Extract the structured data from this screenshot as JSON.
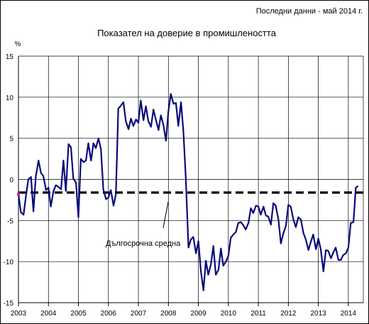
{
  "header": {
    "last_data": "Последни данни - май 2014 г."
  },
  "chart_data": {
    "type": "line",
    "title": "Показател на доверие в промишлеността",
    "ylabel": "%",
    "xlabel": "",
    "ylim": [
      -15,
      15
    ],
    "yticks": [
      15,
      10,
      5,
      0,
      -5,
      -10,
      -15
    ],
    "xlim": [
      2003,
      2014.5
    ],
    "xticks": [
      "2003",
      "2004",
      "2005",
      "2006",
      "2007",
      "2008",
      "2009",
      "2010",
      "2011",
      "2012",
      "2013",
      "2014"
    ],
    "grid": true,
    "colors": {
      "series": "#0a0a7a",
      "average": "#000000",
      "marker": "#e0209a"
    },
    "series": [
      {
        "x": [
          2003.0,
          2003.08,
          2003.17,
          2003.25,
          2003.33,
          2003.42,
          2003.5,
          2003.58,
          2003.67,
          2003.75,
          2003.83,
          2003.92,
          2004.0,
          2004.08,
          2004.17,
          2004.25,
          2004.33,
          2004.42,
          2004.5,
          2004.58,
          2004.67,
          2004.75,
          2004.83,
          2004.92,
          2005.0,
          2005.08,
          2005.17,
          2005.25,
          2005.33,
          2005.42,
          2005.5,
          2005.58,
          2005.67,
          2005.75,
          2005.83,
          2005.92,
          2006.0,
          2006.08,
          2006.17,
          2006.25,
          2006.33,
          2006.42,
          2006.5,
          2006.58,
          2006.67,
          2006.75,
          2006.83,
          2006.92,
          2007.0,
          2007.08,
          2007.17,
          2007.25,
          2007.33,
          2007.42,
          2007.5,
          2007.58,
          2007.67,
          2007.75,
          2007.83,
          2007.92,
          2008.0,
          2008.08,
          2008.17,
          2008.25,
          2008.33,
          2008.42,
          2008.5,
          2008.58,
          2008.67,
          2008.75,
          2008.83,
          2008.92,
          2009.0,
          2009.08,
          2009.17,
          2009.25,
          2009.33,
          2009.42,
          2009.5,
          2009.58,
          2009.67,
          2009.75,
          2009.83,
          2009.92,
          2010.0,
          2010.08,
          2010.17,
          2010.25,
          2010.33,
          2010.42,
          2010.5,
          2010.58,
          2010.67,
          2010.75,
          2010.83,
          2010.92,
          2011.0,
          2011.08,
          2011.17,
          2011.25,
          2011.33,
          2011.42,
          2011.5,
          2011.58,
          2011.67,
          2011.75,
          2011.83,
          2011.92,
          2012.0,
          2012.08,
          2012.17,
          2012.25,
          2012.33,
          2012.42,
          2012.5,
          2012.58,
          2012.67,
          2012.75,
          2012.83,
          2012.92,
          2013.0,
          2013.08,
          2013.17,
          2013.25,
          2013.33,
          2013.42,
          2013.5,
          2013.58,
          2013.67,
          2013.75,
          2013.83,
          2013.92,
          2014.0,
          2014.08,
          2014.17,
          2014.25,
          2014.33
        ],
        "y": [
          -1.8,
          -4.0,
          -4.3,
          -2.0,
          0.0,
          0.3,
          -3.9,
          0.4,
          2.3,
          0.8,
          0.4,
          -1.3,
          -1.0,
          -3.3,
          -1.4,
          -0.7,
          -0.9,
          -1.2,
          2.3,
          -1.4,
          4.3,
          3.9,
          0.1,
          -0.4,
          -4.6,
          2.5,
          2.1,
          2.3,
          4.4,
          2.3,
          4.4,
          3.8,
          5.0,
          3.7,
          -1.2,
          -2.4,
          -2.2,
          -1.3,
          -3.2,
          -1.8,
          8.6,
          9.0,
          9.4,
          7.1,
          6.1,
          7.4,
          6.5,
          7.3,
          6.9,
          9.6,
          7.2,
          8.9,
          7.1,
          6.4,
          8.5,
          7.3,
          6.0,
          7.8,
          6.7,
          4.7,
          8.3,
          10.4,
          9.2,
          9.3,
          6.5,
          9.4,
          5.9,
          0.2,
          -8.3,
          -7.3,
          -7.0,
          -9.0,
          -7.5,
          -11.0,
          -13.5,
          -9.9,
          -11.6,
          -10.3,
          -8.1,
          -11.6,
          -11.0,
          -8.4,
          -10.5,
          -10.0,
          -9.3,
          -7.1,
          -6.7,
          -6.4,
          -5.3,
          -5.2,
          -5.6,
          -6.1,
          -5.3,
          -3.5,
          -4.1,
          -3.2,
          -3.3,
          -4.3,
          -3.3,
          -4.4,
          -4.5,
          -5.5,
          -2.9,
          -3.2,
          -4.9,
          -7.8,
          -6.6,
          -5.6,
          -3.1,
          -3.3,
          -4.9,
          -5.8,
          -4.6,
          -4.9,
          -6.5,
          -7.3,
          -8.6,
          -7.6,
          -6.7,
          -8.5,
          -7.2,
          -8.5,
          -11.2,
          -8.6,
          -8.7,
          -9.6,
          -8.9,
          -8.3,
          -9.8,
          -9.8,
          -9.2,
          -9.0,
          -8.3,
          -5.3,
          -5.2,
          -1.0,
          -0.8
        ]
      }
    ],
    "long_term_average": {
      "label": "Дългосрочна средна",
      "value": -1.6
    }
  }
}
